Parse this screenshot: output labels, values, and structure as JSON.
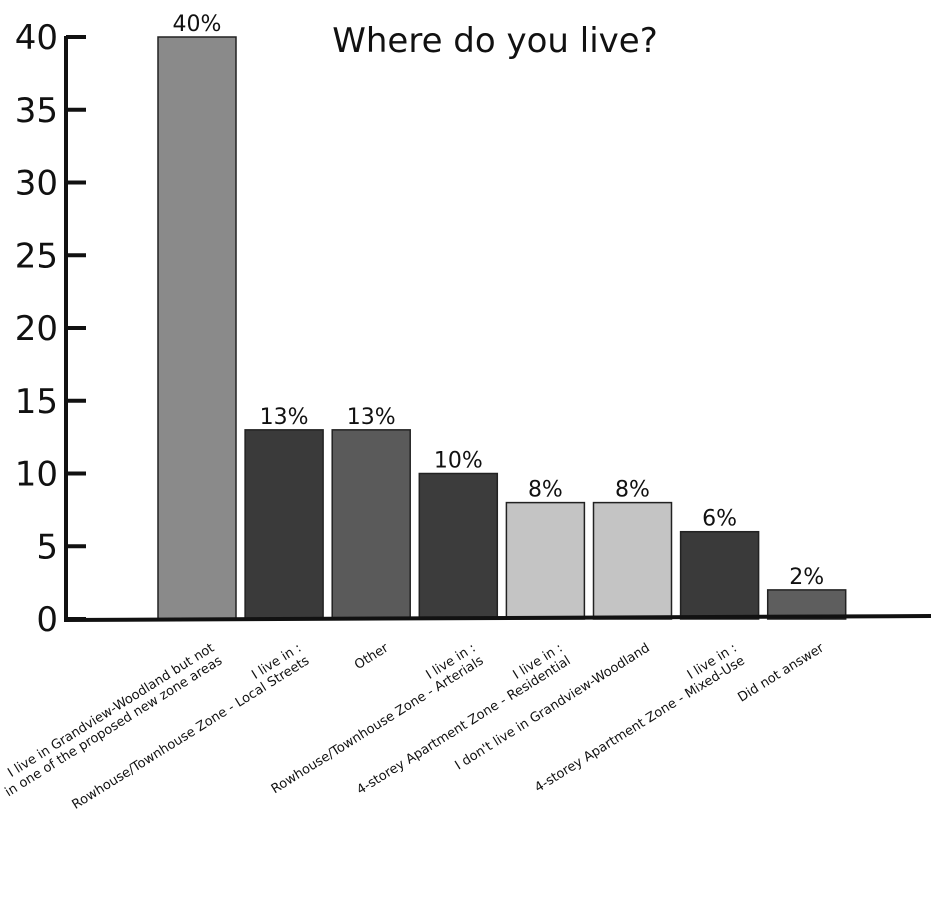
{
  "chart_data": {
    "type": "bar",
    "title": "Where do you live?",
    "xlabel": "",
    "ylabel": "",
    "ylim": [
      0,
      40
    ],
    "yticks": [
      "0",
      "5",
      "10",
      "15",
      "20",
      "25",
      "30",
      "35",
      "40"
    ],
    "grid": false,
    "categories": [
      [
        "I live in Grandview-Woodland but not",
        "in one of the proposed new zone areas"
      ],
      [
        "I live in :",
        "Rowhouse/Townhouse Zone - Local Streets"
      ],
      [
        "Other"
      ],
      [
        "I live in :",
        "Rowhouse/Townhouse Zone - Arterials"
      ],
      [
        "I live in :",
        "4-storey Apartment Zone - Residential"
      ],
      [
        "I don't live in Grandview-Woodland"
      ],
      [
        "I live in :",
        "4-storey Apartment Zone - Mixed-Use"
      ],
      [
        "Did not answer"
      ]
    ],
    "values": [
      40,
      13,
      13,
      10,
      8,
      8,
      6,
      2
    ],
    "data_labels": [
      "40%",
      "13%",
      "13%",
      "10%",
      "8%",
      "8%",
      "6%",
      "2%"
    ],
    "bar_colors": [
      "#8a8a8a",
      "#3a3a3a",
      "#5a5a5a",
      "#3c3c3c",
      "#c4c4c4",
      "#c4c4c4",
      "#3a3a3a",
      "#5e5e5e"
    ]
  }
}
